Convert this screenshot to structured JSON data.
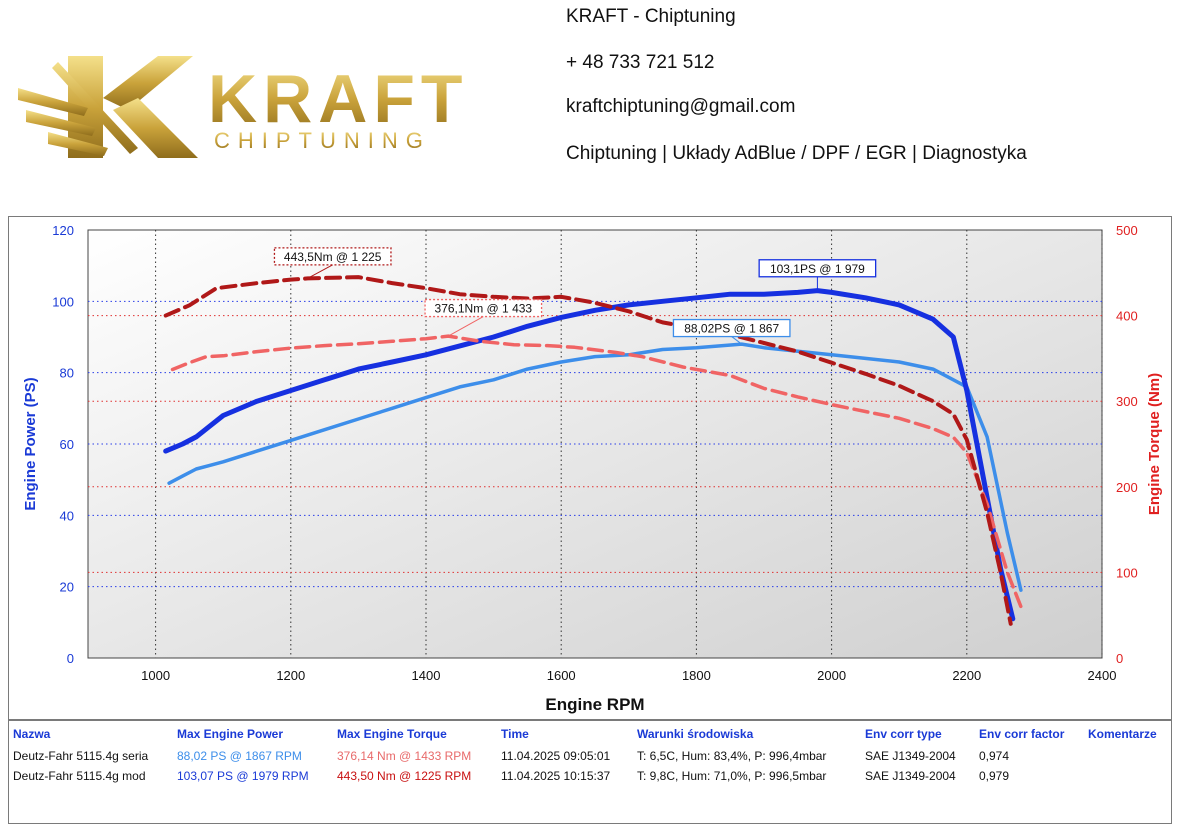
{
  "header": {
    "logo_word": "KRAFT",
    "logo_sub": "CHIPTUNING",
    "company": "KRAFT - Chiptuning",
    "phone": "+ 48 733 721 512",
    "email": "kraftchiptuning@gmail.com",
    "services": "Chiptuning | Układy AdBlue / DPF / EGR | Diagnostyka"
  },
  "colors": {
    "power_stock": "#3d8eea",
    "power_mod": "#1630e0",
    "torque_stock": "#f06464",
    "torque_mod": "#b01818",
    "left_axis": "#1a3ad6",
    "right_axis": "#e02020"
  },
  "chart_data": {
    "type": "line",
    "xlabel": "Engine RPM",
    "ylabel_left": "Engine Power (PS)",
    "ylabel_right": "Engine Torque (Nm)",
    "xlim": [
      900,
      2400
    ],
    "ylim_left": [
      0,
      120
    ],
    "ylim_right": [
      0,
      500
    ],
    "x_ticks": [
      "1000",
      "1200",
      "1400",
      "1600",
      "1800",
      "2000",
      "2200",
      "2400"
    ],
    "y_left_ticks": [
      "0",
      "20",
      "40",
      "60",
      "80",
      "100",
      "120"
    ],
    "y_right_ticks": [
      "0",
      "100",
      "200",
      "300",
      "400",
      "500"
    ],
    "grid": true,
    "series": [
      {
        "axis": "left",
        "style": "solid",
        "points": [
          [
            1020,
            49
          ],
          [
            1040,
            51
          ],
          [
            1060,
            53
          ],
          [
            1080,
            54
          ],
          [
            1100,
            55
          ],
          [
            1150,
            58
          ],
          [
            1200,
            61
          ],
          [
            1250,
            64
          ],
          [
            1300,
            67
          ],
          [
            1350,
            70
          ],
          [
            1400,
            73
          ],
          [
            1450,
            76
          ],
          [
            1500,
            78
          ],
          [
            1550,
            81
          ],
          [
            1600,
            83
          ],
          [
            1650,
            84.5
          ],
          [
            1700,
            85
          ],
          [
            1750,
            86.5
          ],
          [
            1800,
            87
          ],
          [
            1867,
            88
          ],
          [
            1900,
            87
          ],
          [
            1950,
            86
          ],
          [
            2000,
            85
          ],
          [
            2050,
            84
          ],
          [
            2100,
            83
          ],
          [
            2150,
            81
          ],
          [
            2200,
            76
          ],
          [
            2230,
            62
          ],
          [
            2260,
            35
          ],
          [
            2280,
            19
          ]
        ]
      },
      {
        "axis": "left",
        "style": "solid",
        "points": [
          [
            1015,
            58
          ],
          [
            1040,
            60
          ],
          [
            1060,
            62
          ],
          [
            1080,
            65
          ],
          [
            1100,
            68
          ],
          [
            1150,
            72
          ],
          [
            1200,
            75
          ],
          [
            1250,
            78
          ],
          [
            1300,
            81
          ],
          [
            1350,
            83
          ],
          [
            1400,
            85
          ],
          [
            1450,
            87.5
          ],
          [
            1500,
            90
          ],
          [
            1550,
            93
          ],
          [
            1600,
            95.5
          ],
          [
            1650,
            97.5
          ],
          [
            1700,
            99
          ],
          [
            1750,
            100
          ],
          [
            1800,
            101
          ],
          [
            1850,
            102
          ],
          [
            1900,
            102
          ],
          [
            1950,
            102.5
          ],
          [
            1979,
            103
          ],
          [
            2000,
            102.5
          ],
          [
            2050,
            101
          ],
          [
            2100,
            99
          ],
          [
            2150,
            95
          ],
          [
            2180,
            90
          ],
          [
            2200,
            75
          ],
          [
            2230,
            45
          ],
          [
            2250,
            25
          ],
          [
            2268,
            11
          ]
        ]
      },
      {
        "axis": "right",
        "style": "dashed",
        "points": [
          [
            1025,
            337
          ],
          [
            1050,
            345
          ],
          [
            1075,
            352
          ],
          [
            1100,
            353
          ],
          [
            1150,
            358
          ],
          [
            1200,
            362
          ],
          [
            1250,
            365
          ],
          [
            1300,
            367
          ],
          [
            1350,
            370
          ],
          [
            1400,
            373
          ],
          [
            1433,
            376
          ],
          [
            1480,
            370
          ],
          [
            1530,
            366
          ],
          [
            1580,
            365
          ],
          [
            1620,
            363
          ],
          [
            1680,
            357
          ],
          [
            1720,
            352
          ],
          [
            1780,
            340
          ],
          [
            1850,
            330
          ],
          [
            1900,
            315
          ],
          [
            1950,
            305
          ],
          [
            2000,
            296
          ],
          [
            2050,
            288
          ],
          [
            2100,
            280
          ],
          [
            2150,
            268
          ],
          [
            2180,
            258
          ],
          [
            2200,
            240
          ],
          [
            2230,
            180
          ],
          [
            2260,
            100
          ],
          [
            2280,
            60
          ]
        ]
      },
      {
        "axis": "right",
        "style": "dashed",
        "points": [
          [
            1015,
            400
          ],
          [
            1050,
            412
          ],
          [
            1090,
            432
          ],
          [
            1150,
            438
          ],
          [
            1200,
            442
          ],
          [
            1225,
            443.5
          ],
          [
            1300,
            445
          ],
          [
            1350,
            438
          ],
          [
            1400,
            432
          ],
          [
            1450,
            425
          ],
          [
            1500,
            422
          ],
          [
            1550,
            420
          ],
          [
            1600,
            422
          ],
          [
            1650,
            415
          ],
          [
            1700,
            405
          ],
          [
            1750,
            392
          ],
          [
            1800,
            385
          ],
          [
            1850,
            378
          ],
          [
            1900,
            368
          ],
          [
            1950,
            358
          ],
          [
            2000,
            345
          ],
          [
            2050,
            332
          ],
          [
            2100,
            318
          ],
          [
            2150,
            300
          ],
          [
            2180,
            285
          ],
          [
            2200,
            255
          ],
          [
            2230,
            170
          ],
          [
            2250,
            100
          ],
          [
            2265,
            40
          ]
        ]
      }
    ],
    "annotations": [
      {
        "text": "103,1PS @ 1 979",
        "x": 1979,
        "y": 103.1,
        "axis": "left",
        "style": "solid-blue"
      },
      {
        "text": "88,02PS @ 1 867",
        "x": 1867,
        "y": 88.02,
        "axis": "left",
        "style": "solid-lightblue"
      },
      {
        "text": "443,5Nm @ 1 225",
        "x": 1225,
        "y": 443.5,
        "axis": "right",
        "style": "dotted-darkred"
      },
      {
        "text": "376,1Nm @ 1 433",
        "x": 1433,
        "y": 376.1,
        "axis": "right",
        "style": "dotted-lightred"
      }
    ]
  },
  "results_table": {
    "headers": [
      "Nazwa",
      "Max Engine Power",
      "Max Engine Torque",
      "Time",
      "Warunki środowiska",
      "Env corr type",
      "Env corr factor",
      "Komentarze"
    ],
    "rows": [
      {
        "name": "Deutz-Fahr 5115.4g seria",
        "max_power": "88,02 PS @ 1867 RPM",
        "max_torque": "376,14 Nm @ 1433 RPM",
        "time": "11.04.2025 09:05:01",
        "conditions": "T: 6,5C, Hum: 83,4%, P: 996,4mbar",
        "corr_type": "SAE J1349-2004",
        "corr_factor": "0,974",
        "comment": ""
      },
      {
        "name": "Deutz-Fahr 5115.4g mod",
        "max_power": "103,07 PS @ 1979 RPM",
        "max_torque": "443,50 Nm @ 1225 RPM",
        "time": "11.04.2025 10:15:37",
        "conditions": "T: 9,8C, Hum: 71,0%, P: 996,5mbar",
        "corr_type": "SAE J1349-2004",
        "corr_factor": "0,979",
        "comment": ""
      }
    ]
  }
}
